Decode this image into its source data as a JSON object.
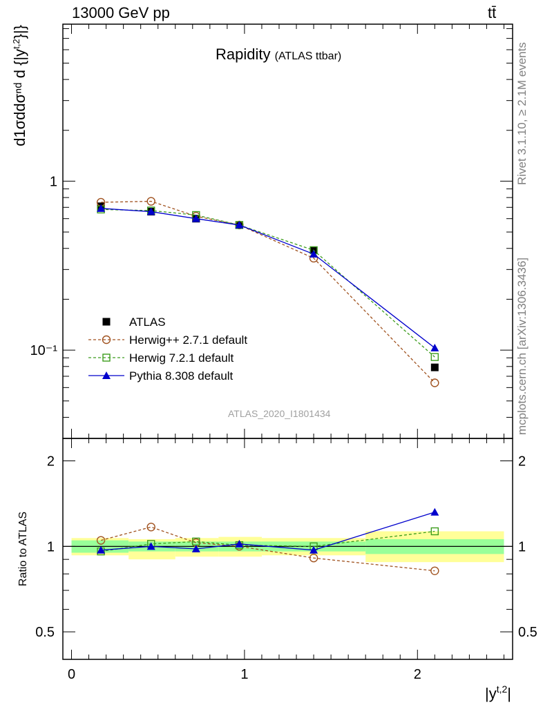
{
  "header": {
    "energy_label": "13000 GeV pp",
    "process_label": "tt̄"
  },
  "side_labels": {
    "rivet": "Rivet 3.1.10, ≥ 2.1M events",
    "mcplots": "mcplots.cern.ch [arXiv:1306.3436]"
  },
  "main_plot": {
    "title": "Rapidity",
    "title_sub": "(ATLAS ttbar)",
    "analysis_id": "ATLAS_2020_I1801434",
    "ylabel_tex": "d(1/σ)dσ/d{|y^{t,2}|}",
    "y_scale": "log",
    "y_ticks": [
      {
        "v": 1,
        "label": "1"
      },
      {
        "v": 0.1,
        "label": "10⁻¹"
      }
    ]
  },
  "ratio_plot": {
    "ylabel": "Ratio to ATLAS",
    "y_ticks": [
      "2",
      "1",
      "0.5"
    ],
    "right_ticks": [
      "2",
      "1",
      "0.5"
    ]
  },
  "xaxis": {
    "label": "|y^{t,2}|",
    "ticks": [
      "0",
      "1",
      "2"
    ]
  },
  "legend": [
    {
      "name": "ATLAS",
      "color": "#000000",
      "marker": "filled-square",
      "line": "none"
    },
    {
      "name": "Herwig++ 2.7.1 default",
      "color": "#a0521f",
      "marker": "open-circle",
      "line": "dashed"
    },
    {
      "name": "Herwig 7.2.1 default",
      "color": "#3c9c1c",
      "marker": "open-square",
      "line": "dashed"
    },
    {
      "name": "Pythia 8.308 default",
      "color": "#0000cc",
      "marker": "filled-triangle",
      "line": "solid"
    }
  ],
  "chart_data": {
    "type": "line",
    "x_range": [
      -0.05,
      2.55
    ],
    "bins": [
      [
        0,
        0.33
      ],
      [
        0.33,
        0.6
      ],
      [
        0.6,
        0.85
      ],
      [
        0.85,
        1.1
      ],
      [
        1.1,
        1.7
      ],
      [
        1.7,
        2.5
      ]
    ],
    "x": [
      0.17,
      0.46,
      0.72,
      0.97,
      1.4,
      2.1
    ],
    "main_ylim": [
      0.03,
      8.5
    ],
    "ratio_ylim": [
      0.4,
      2.4
    ],
    "band_inner": [
      [
        0.95,
        1.05
      ],
      [
        0.96,
        1.04
      ],
      [
        0.96,
        1.04
      ],
      [
        0.96,
        1.04
      ],
      [
        0.96,
        1.04
      ],
      [
        0.94,
        1.06
      ]
    ],
    "band_outer": [
      [
        0.93,
        1.07
      ],
      [
        0.9,
        1.06
      ],
      [
        0.92,
        1.07
      ],
      [
        0.92,
        1.08
      ],
      [
        0.93,
        1.07
      ],
      [
        0.88,
        1.13
      ]
    ],
    "series": [
      {
        "name": "ATLAS",
        "values": [
          0.71,
          0.66,
          0.6,
          0.55,
          0.39,
          0.079
        ],
        "ratio": [
          1,
          1,
          1,
          1,
          1,
          1
        ]
      },
      {
        "name": "Herwig++ 2.7.1 default",
        "values": [
          0.75,
          0.76,
          0.62,
          0.55,
          0.35,
          0.064
        ],
        "ratio": [
          1.05,
          1.17,
          1.03,
          1.0,
          0.91,
          0.82
        ]
      },
      {
        "name": "Herwig 7.2.1 default",
        "values": [
          0.68,
          0.67,
          0.63,
          0.55,
          0.39,
          0.091
        ],
        "ratio": [
          0.96,
          1.02,
          1.04,
          1.01,
          1.0,
          1.13
        ]
      },
      {
        "name": "Pythia 8.308 default",
        "values": [
          0.69,
          0.66,
          0.6,
          0.55,
          0.37,
          0.103
        ],
        "ratio": [
          0.97,
          1.0,
          0.98,
          1.02,
          0.97,
          1.32
        ]
      }
    ]
  }
}
